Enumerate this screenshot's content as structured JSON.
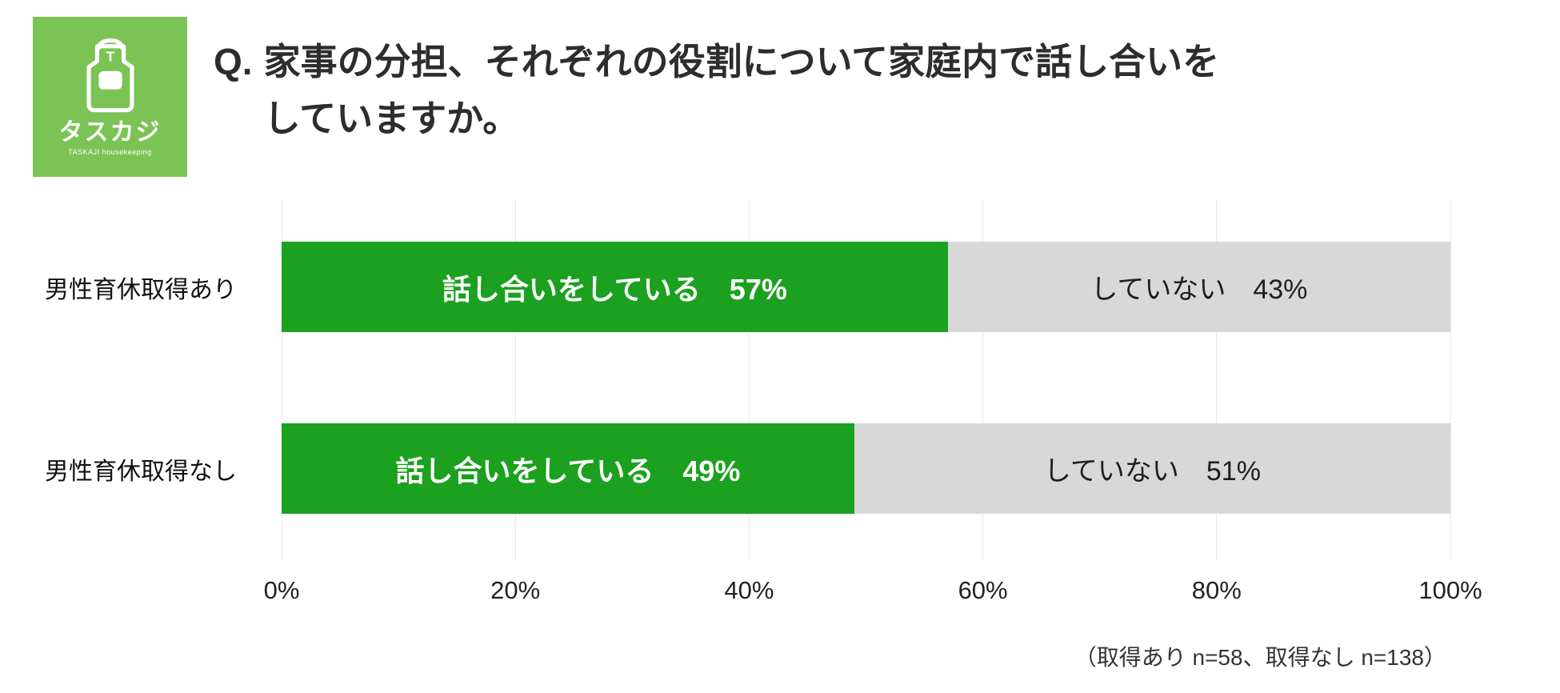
{
  "logo": {
    "bg_color": "#7cc355",
    "apron_letter": "T",
    "brand_jp": "タスカジ",
    "brand_en": "TASKAJI housekeeping"
  },
  "title": {
    "prefix": "Q.",
    "line1": "家事の分担、それぞれの役割について家庭内で話し合いを",
    "line2": "していますか。"
  },
  "note": "（取得あり n=58、取得なし n=138）",
  "chart_data": {
    "type": "bar",
    "orientation": "horizontal_stacked",
    "title": "Q. 家事の分担、それぞれの役割について家庭内で話し合いをしていますか。",
    "categories": [
      "男性育休取得あり",
      "男性育休取得なし"
    ],
    "series": [
      {
        "name": "話し合いをしている",
        "values": [
          57,
          49
        ],
        "color": "#1ba11f",
        "text_color": "#ffffff"
      },
      {
        "name": "していない",
        "values": [
          43,
          51
        ],
        "color": "#d8d8d8",
        "text_color": "#1f1f1f"
      }
    ],
    "rows": [
      {
        "category": "男性育休取得あり",
        "segments": [
          {
            "text": "話し合いをしている　57%",
            "value": 57
          },
          {
            "text": "していない　43%",
            "value": 43
          }
        ]
      },
      {
        "category": "男性育休取得なし",
        "segments": [
          {
            "text": "話し合いをしている　49%",
            "value": 49
          },
          {
            "text": "していない　51%",
            "value": 51
          }
        ]
      }
    ],
    "x_ticks": [
      {
        "label": "0%",
        "value": 0
      },
      {
        "label": "20%",
        "value": 20
      },
      {
        "label": "40%",
        "value": 40
      },
      {
        "label": "60%",
        "value": 60
      },
      {
        "label": "80%",
        "value": 80
      },
      {
        "label": "100%",
        "value": 100
      }
    ],
    "xlim": [
      0,
      100
    ],
    "grid": true,
    "legend": false,
    "note": "（取得あり n=58、取得なし n=138）"
  }
}
